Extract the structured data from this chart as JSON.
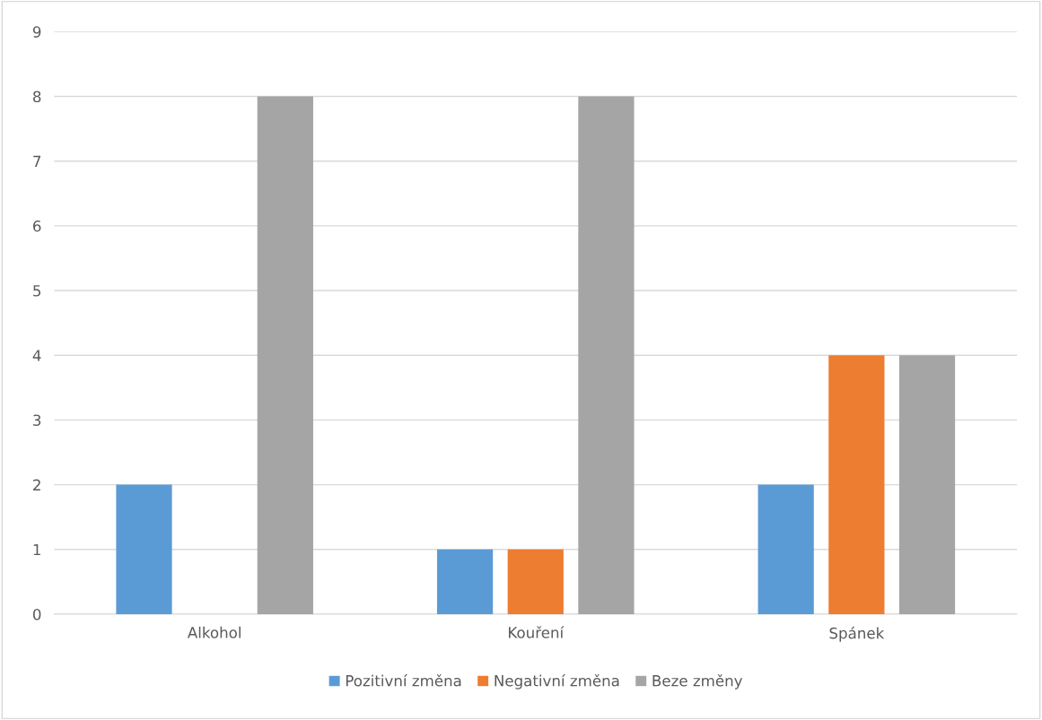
{
  "chart_data": {
    "type": "bar",
    "categories": [
      "Alkohol",
      "Kouření",
      "Spánek"
    ],
    "series": [
      {
        "name": "Pozitivní změna",
        "color": "#5b9bd5",
        "values": [
          2,
          1,
          2
        ]
      },
      {
        "name": "Negativní změna",
        "color": "#ed7d31",
        "values": [
          0,
          1,
          4
        ]
      },
      {
        "name": "Beze změny",
        "color": "#a5a5a5",
        "values": [
          8,
          8,
          4
        ]
      }
    ],
    "ylim": [
      0,
      9
    ],
    "yticks": [
      0,
      1,
      2,
      3,
      4,
      5,
      6,
      7,
      8,
      9
    ],
    "grid": "y",
    "legend": "bottom"
  }
}
